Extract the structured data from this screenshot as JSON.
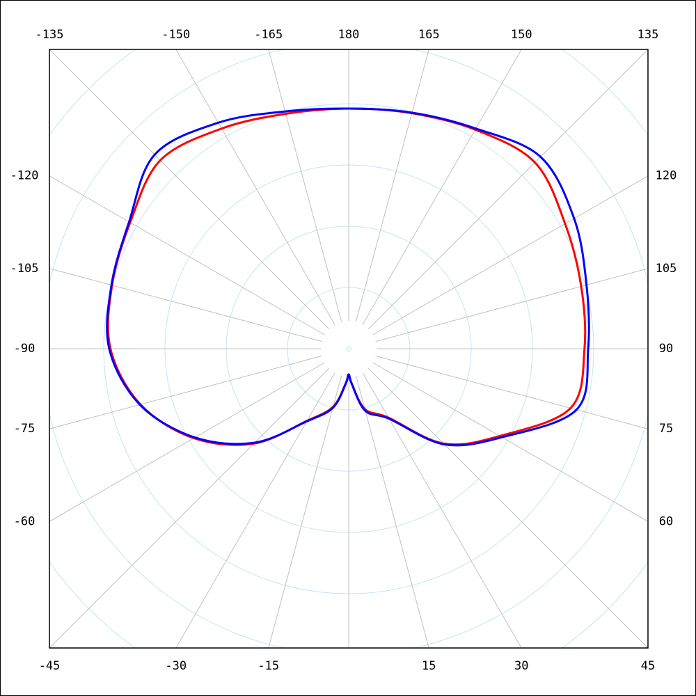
{
  "chart_data": {
    "type": "polar",
    "theta": [
      -180,
      -165,
      -150,
      -135,
      -120,
      -105,
      -90,
      -75,
      -60,
      -45,
      -30,
      -15,
      -5,
      0,
      5,
      15,
      30,
      45,
      60,
      75,
      90,
      105,
      120,
      135,
      150,
      165
    ],
    "series": [
      {
        "color": "#ff0000",
        "values": [
          3.92,
          3.97,
          4.15,
          4.35,
          4.12,
          4.0,
          3.89,
          3.52,
          2.92,
          2.19,
          1.36,
          0.98,
          0.57,
          0.42,
          0.57,
          1.02,
          1.3,
          2.19,
          2.85,
          3.75,
          3.85,
          3.93,
          4.08,
          4.3,
          4.13,
          3.98
        ]
      },
      {
        "color": "#0000ff",
        "values": [
          3.92,
          4.01,
          4.26,
          4.48,
          4.14,
          4.01,
          3.91,
          3.53,
          2.9,
          2.17,
          1.37,
          1.0,
          0.58,
          0.42,
          0.58,
          1.05,
          1.32,
          2.21,
          2.89,
          3.85,
          3.91,
          4.02,
          4.25,
          4.43,
          4.15,
          3.99
        ]
      }
    ],
    "rlim": [
      0,
      5
    ],
    "rticks": [
      1,
      2,
      3,
      4,
      5,
      6
    ],
    "thetaticks": [
      -165,
      -150,
      -135,
      -120,
      -105,
      -90,
      -75,
      -60,
      -45,
      -30,
      -15,
      {
        "value": 0,
        "label": null
      },
      15,
      30,
      45,
      60,
      75,
      90,
      105,
      120,
      135,
      150,
      165,
      180
    ]
  }
}
